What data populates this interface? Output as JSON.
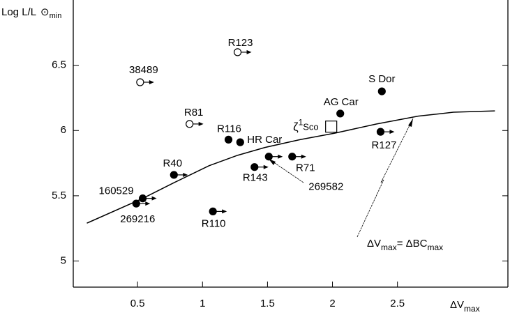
{
  "chart_data": {
    "type": "scatter",
    "ylabel": {
      "main": "Log L/L",
      "symbol": "⊙",
      "sub": "min"
    },
    "xlabel": {
      "main": "ΔV",
      "sub": "max"
    },
    "xlim": [
      0,
      3.35
    ],
    "ylim": [
      4.8,
      7
    ],
    "xticks": [
      0.5,
      1,
      1.5,
      2,
      2.5
    ],
    "yticks": [
      5,
      5.5,
      6,
      6.5
    ],
    "points": {
      "labels": [
        "R123",
        "38489",
        "R81",
        "S Dor",
        "AG Car",
        "R127",
        "R116",
        "HR Car",
        "R71",
        "R143",
        "269582",
        "R40",
        "160529",
        "269216",
        "R110"
      ],
      "x": [
        1.27,
        0.52,
        0.9,
        2.38,
        2.06,
        2.37,
        1.2,
        1.29,
        1.69,
        1.4,
        1.51,
        0.78,
        0.54,
        0.49,
        1.08
      ],
      "values": [
        6.6,
        6.37,
        6.05,
        6.3,
        6.13,
        5.99,
        5.93,
        5.91,
        5.8,
        5.72,
        5.8,
        5.66,
        5.48,
        5.44,
        5.38
      ],
      "filled": [
        false,
        false,
        false,
        true,
        true,
        true,
        true,
        true,
        true,
        true,
        true,
        true,
        true,
        true,
        true
      ],
      "arrow": [
        true,
        true,
        true,
        false,
        false,
        true,
        false,
        false,
        true,
        true,
        true,
        true,
        true,
        true,
        true
      ]
    },
    "square": {
      "symbol": "ζ",
      "sup": "1",
      "name": "Sco",
      "x": 1.99,
      "y": 6.03
    },
    "curve": {
      "x": [
        0.11,
        0.54,
        0.78,
        1.05,
        1.27,
        1.48,
        1.75,
        2.02,
        2.34,
        2.66,
        2.93,
        3.25
      ],
      "values": [
        5.29,
        5.48,
        5.6,
        5.73,
        5.81,
        5.87,
        5.93,
        5.98,
        6.05,
        6.11,
        6.14,
        6.15
      ]
    },
    "annotation": {
      "a": "ΔV",
      "a_sub": "max",
      "eq": "= ΔBC",
      "b_sub": "max"
    }
  }
}
